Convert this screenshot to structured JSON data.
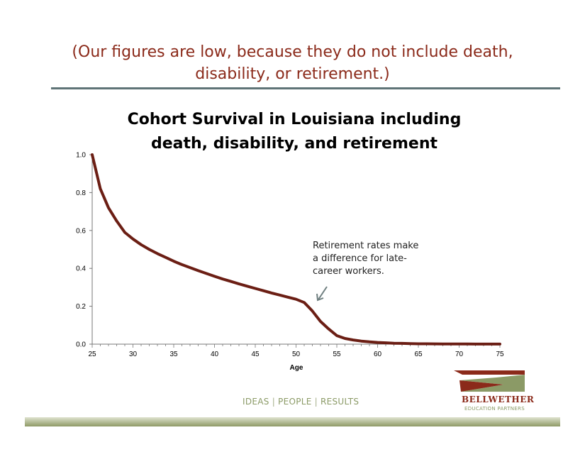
{
  "slide": {
    "heading_line1": "(Our figures are low, because they do not include death,",
    "heading_line2": "disability, or retirement.)",
    "annotation_line1": "Retirement rates make",
    "annotation_line2": "a difference for late-",
    "annotation_line3": "career workers.",
    "tagline": {
      "ideas": "IDEAS",
      "people": "PEOPLE",
      "results": "RESULTS",
      "separator": "|"
    },
    "brand": {
      "name": "BELLWETHER",
      "subtitle": "EDUCATION PARTNERS",
      "accent_color": "#8b2a1a",
      "secondary_color": "#8b9a66"
    },
    "colors": {
      "heading": "#8b2a1a",
      "rule": "#5f7477",
      "line": "#6b1e14",
      "arrow": "#6f7f80"
    }
  },
  "chart_data": {
    "type": "line",
    "title_line1": "Cohort Survival in Louisiana including",
    "title_line2": "death, disability, and retirement",
    "xlabel": "Age",
    "ylabel": "",
    "xlim": [
      25,
      75
    ],
    "ylim": [
      0.0,
      1.0
    ],
    "x_ticks": [
      "25",
      "30",
      "35",
      "40",
      "45",
      "50",
      "55",
      "60",
      "65",
      "70",
      "75"
    ],
    "y_ticks": [
      "0.0",
      "0.2",
      "0.4",
      "0.6",
      "0.8",
      "1.0"
    ],
    "grid": false,
    "legend": "none",
    "series": [
      {
        "x": [
          25,
          26,
          27,
          28,
          29,
          30,
          31,
          32,
          33,
          34,
          35,
          36,
          37,
          38,
          39,
          40,
          41,
          42,
          43,
          44,
          45,
          46,
          47,
          48,
          49,
          50,
          51,
          52,
          53,
          54,
          55,
          56,
          57,
          58,
          59,
          60,
          61,
          62,
          63,
          64,
          65,
          66,
          67,
          68,
          69,
          70,
          71,
          72,
          73,
          74,
          75
        ],
        "values": [
          1.0,
          0.82,
          0.72,
          0.65,
          0.59,
          0.555,
          0.525,
          0.5,
          0.478,
          0.458,
          0.438,
          0.42,
          0.404,
          0.388,
          0.373,
          0.358,
          0.344,
          0.331,
          0.318,
          0.306,
          0.294,
          0.282,
          0.27,
          0.259,
          0.248,
          0.237,
          0.22,
          0.175,
          0.12,
          0.08,
          0.045,
          0.03,
          0.022,
          0.016,
          0.012,
          0.009,
          0.007,
          0.005,
          0.004,
          0.003,
          0.002,
          0.002,
          0.0015,
          0.001,
          0.001,
          0.0008,
          0.0006,
          0.0005,
          0.0004,
          0.0003,
          0.0002
        ]
      }
    ]
  }
}
